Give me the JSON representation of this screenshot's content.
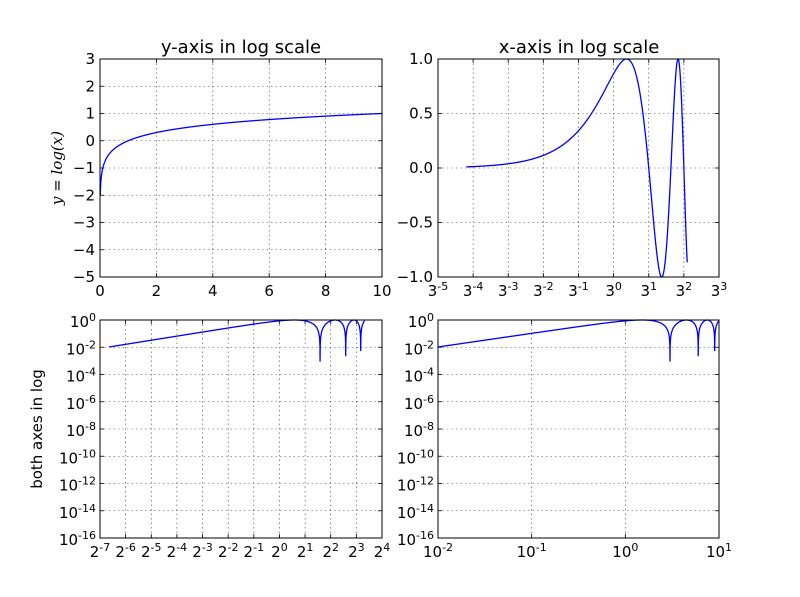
{
  "colors": {
    "line": "#0000ff",
    "axes": "#000000",
    "background": "#ffffff"
  },
  "chart_data": [
    {
      "type": "line",
      "title": "y-axis in log scale",
      "ylabel": "y = log(x)",
      "xlim": [
        0,
        10
      ],
      "ylim": [
        -5,
        3
      ],
      "xscale": "linear",
      "yscale": "linear",
      "grid": true,
      "x_ticks": [
        0,
        2,
        4,
        6,
        8,
        10
      ],
      "x_tick_labels": [
        "0",
        "2",
        "4",
        "6",
        "8",
        "10"
      ],
      "y_ticks": [
        -5,
        -4,
        -3,
        -2,
        -1,
        0,
        1,
        2,
        3
      ],
      "y_tick_labels": [
        "−5",
        "−4",
        "−3",
        "−2",
        "−1",
        "0",
        "1",
        "2",
        "3"
      ],
      "series": [
        {
          "function": "log(x)",
          "x_range": [
            0.01,
            10
          ]
        }
      ]
    },
    {
      "type": "line",
      "title": "x-axis in log scale",
      "xlim": [
        0.004115,
        27
      ],
      "ylim": [
        -1,
        1
      ],
      "xscale": "log3",
      "yscale": "linear",
      "grid": true,
      "x_ticks": [
        -5,
        -4,
        -3,
        -2,
        -1,
        0,
        1,
        2,
        3
      ],
      "x_tick_bases": [
        "3",
        "3",
        "3",
        "3",
        "3",
        "3",
        "3",
        "3",
        "3"
      ],
      "x_tick_exps": [
        "-5",
        "-4",
        "-3",
        "-2",
        "-1",
        "0",
        "1",
        "2",
        "3"
      ],
      "y_ticks": [
        -1,
        -0.5,
        0,
        0.5,
        1
      ],
      "y_tick_labels": [
        "−1.0",
        "−0.5",
        "0.0",
        "0.5",
        "1.0"
      ],
      "series": [
        {
          "function": "sin(2*pi*x/6)",
          "x_range": [
            0.01,
            10
          ]
        }
      ]
    },
    {
      "type": "line",
      "xlim": [
        0.0078125,
        16
      ],
      "ylim": [
        1e-16,
        1
      ],
      "xscale": "log2",
      "yscale": "log10",
      "grid": true,
      "ylabel": "both axes in log",
      "x_ticks": [
        -7,
        -6,
        -5,
        -4,
        -3,
        -2,
        -1,
        0,
        1,
        2,
        3,
        4
      ],
      "x_tick_bases": [
        "2",
        "2",
        "2",
        "2",
        "2",
        "2",
        "2",
        "2",
        "2",
        "2",
        "2",
        "2"
      ],
      "x_tick_exps": [
        "-7",
        "-6",
        "-5",
        "-4",
        "-3",
        "-2",
        "-1",
        "0",
        "1",
        "2",
        "3",
        "4"
      ],
      "y_ticks": [
        0,
        -2,
        -4,
        -6,
        -8,
        -10,
        -12,
        -14,
        -16
      ],
      "y_tick_bases": [
        "10",
        "10",
        "10",
        "10",
        "10",
        "10",
        "10",
        "10",
        "10"
      ],
      "y_tick_exps": [
        "0",
        "-2",
        "-4",
        "-6",
        "-8",
        "-10",
        "-12",
        "-14",
        "-16"
      ],
      "series": [
        {
          "function": "abs(sin(2*pi*x/6))",
          "x_range": [
            0.01,
            10
          ]
        }
      ]
    },
    {
      "type": "line",
      "xlim": [
        0.01,
        10
      ],
      "ylim": [
        1e-16,
        1
      ],
      "xscale": "log10",
      "yscale": "log10",
      "grid": true,
      "x_ticks": [
        -2,
        -1,
        0,
        1
      ],
      "x_tick_bases": [
        "10",
        "10",
        "10",
        "10"
      ],
      "x_tick_exps": [
        "-2",
        "-1",
        "0",
        "1"
      ],
      "y_ticks": [
        0,
        -2,
        -4,
        -6,
        -8,
        -10,
        -12,
        -14,
        -16
      ],
      "y_tick_bases": [
        "10",
        "10",
        "10",
        "10",
        "10",
        "10",
        "10",
        "10",
        "10"
      ],
      "y_tick_exps": [
        "0",
        "-2",
        "-4",
        "-6",
        "-8",
        "-10",
        "-12",
        "-14",
        "-16"
      ],
      "series": [
        {
          "function": "abs(sin(2*pi*x/6))",
          "x_range": [
            0.01,
            10
          ]
        }
      ]
    }
  ]
}
